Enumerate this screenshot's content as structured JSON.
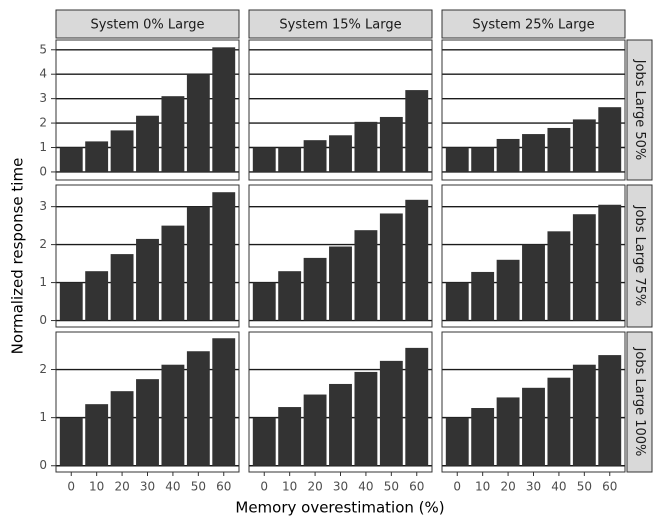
{
  "chart_data": {
    "type": "bar",
    "x_label": "Memory overestimation (%)",
    "y_label": "Normalized response time",
    "categories": [
      "0",
      "10",
      "20",
      "30",
      "40",
      "50",
      "60"
    ],
    "color": "#333333",
    "grid": true,
    "columns": [
      "System 0% Large",
      "System 15% Large",
      "System 25% Large"
    ],
    "rows": [
      {
        "label": "Jobs Large 50%",
        "ylim": [
          -0.33,
          5.4
        ],
        "yticks": [
          0,
          1,
          2,
          3,
          4,
          5
        ],
        "panels": [
          [
            1,
            1.25,
            1.7,
            2.3,
            3.1,
            4.0,
            5.1
          ],
          [
            1,
            1,
            1.3,
            1.5,
            2.05,
            2.25,
            3.35
          ],
          [
            1,
            1,
            1.35,
            1.55,
            1.8,
            2.15,
            2.65
          ]
        ]
      },
      {
        "label": "Jobs Large 75%",
        "ylim": [
          -0.17,
          3.57
        ],
        "yticks": [
          0,
          1,
          2,
          3
        ],
        "panels": [
          [
            1,
            1.3,
            1.75,
            2.15,
            2.5,
            3.0,
            3.38
          ],
          [
            1,
            1.3,
            1.65,
            1.95,
            2.38,
            2.82,
            3.18
          ],
          [
            1,
            1.28,
            1.6,
            2.0,
            2.35,
            2.8,
            3.05
          ]
        ]
      },
      {
        "label": "Jobs Large 100%",
        "ylim": [
          -0.13,
          2.78
        ],
        "yticks": [
          0,
          1,
          2
        ],
        "panels": [
          [
            1,
            1.28,
            1.55,
            1.8,
            2.1,
            2.38,
            2.65
          ],
          [
            1,
            1.22,
            1.48,
            1.7,
            1.95,
            2.18,
            2.45
          ],
          [
            1,
            1.2,
            1.42,
            1.62,
            1.83,
            2.1,
            2.3
          ]
        ]
      }
    ]
  }
}
